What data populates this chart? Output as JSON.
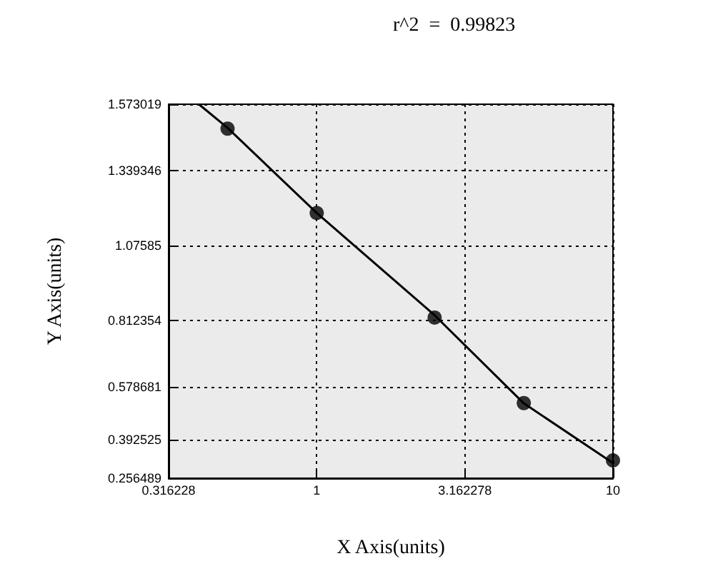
{
  "chart_data": {
    "type": "scatter",
    "title": "r^2  =  0.99823",
    "xlabel": "X Axis(units)",
    "ylabel": "Y Axis(units)",
    "log": "x",
    "xlim": [
      0.316228,
      10
    ],
    "xticks": [
      0.316228,
      1,
      3.162278,
      10
    ],
    "ylim": [
      0.256489,
      1.573019
    ],
    "yticks": [
      0.256489,
      0.392525,
      0.578681,
      0.812354,
      1.07585,
      1.339346,
      1.573019
    ],
    "grid": true,
    "marker": "circle",
    "series": [
      {
        "color": "#000000",
        "x": [
          0.5,
          1,
          2.5,
          5,
          10
        ],
        "values": [
          1.487,
          1.19,
          0.822,
          0.521,
          0.319
        ]
      },
      {
        "type": "line",
        "color": "#000000",
        "marker": "none",
        "line_style": "solid",
        "x": [
          0.4,
          0.5,
          1,
          2.5,
          5,
          10
        ],
        "values": [
          1.573,
          1.49,
          1.19,
          0.83,
          0.52,
          0.31
        ]
      }
    ]
  }
}
